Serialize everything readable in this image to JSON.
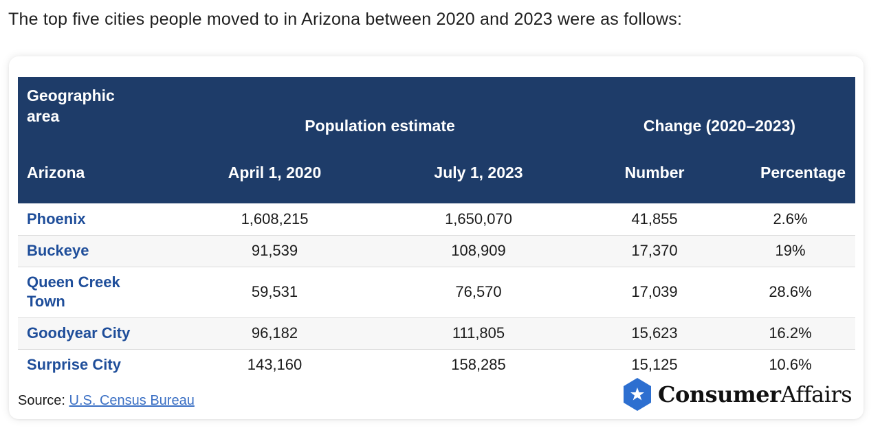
{
  "intro": "The top five cities people moved to in Arizona between 2020 and 2023 were as follows:",
  "table": {
    "header": {
      "geo_line1": "Geographic",
      "geo_line2": "area",
      "population_group": "Population estimate",
      "change_group": "Change (2020–2023)",
      "state": "Arizona",
      "col_april": "April 1, 2020",
      "col_july": "July 1, 2023",
      "col_number": "Number",
      "col_percentage": "Percentage"
    },
    "rows": [
      {
        "city": "Phoenix",
        "april_2020": "1,608,215",
        "july_2023": "1,650,070",
        "number": "41,855",
        "percentage": "2.6%"
      },
      {
        "city": "Buckeye",
        "april_2020": "91,539",
        "july_2023": "108,909",
        "number": "17,370",
        "percentage": "19%"
      },
      {
        "city_line1": "Queen Creek",
        "city_line2": "Town",
        "april_2020": "59,531",
        "july_2023": "76,570",
        "number": "17,039",
        "percentage": "28.6%"
      },
      {
        "city": "Goodyear City",
        "april_2020": "96,182",
        "july_2023": "111,805",
        "number": "15,623",
        "percentage": "16.2%"
      },
      {
        "city": "Surprise City",
        "april_2020": "143,160",
        "july_2023": "158,285",
        "number": "15,125",
        "percentage": "10.6%"
      }
    ]
  },
  "source": {
    "label": "Source:",
    "link_text": "U.S. Census Bureau"
  },
  "logo": {
    "icon": "star-hexagon-icon",
    "brand_bold": "Consumer",
    "brand_regular": "Affairs"
  },
  "colors": {
    "header_bg": "#1e3c69",
    "city_text": "#1f4e9a",
    "link": "#3a6fc4",
    "badge": "#2d6fd0"
  }
}
